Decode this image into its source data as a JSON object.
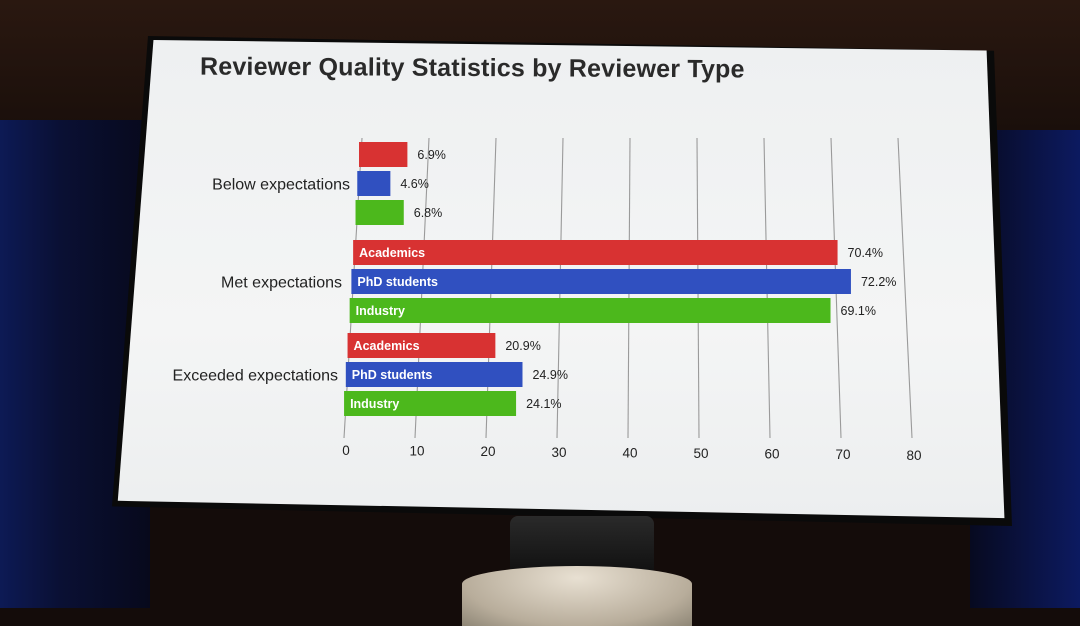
{
  "slide": {
    "title": "Reviewer Quality Statistics by Reviewer Type"
  },
  "chart_data": {
    "type": "bar",
    "orientation": "horizontal",
    "title": "Reviewer Quality Statistics by Reviewer Type",
    "xlabel": "",
    "ylabel": "",
    "xlim": [
      0,
      80
    ],
    "x_ticks": [
      0,
      10,
      20,
      30,
      40,
      50,
      60,
      70,
      80
    ],
    "grid": true,
    "legend": "inside-bars",
    "categories": [
      "Below expectations",
      "Met expectations",
      "Exceeded expectations"
    ],
    "series": [
      {
        "name": "Academics",
        "color": "#d83232",
        "values": [
          6.9,
          70.4,
          20.9
        ],
        "value_labels": [
          "6.9%",
          "70.4%",
          "20.9%"
        ]
      },
      {
        "name": "PhD students",
        "color": "#3050c0",
        "values": [
          4.6,
          72.2,
          24.9
        ],
        "value_labels": [
          "4.6%",
          "72.2%",
          "24.9%"
        ]
      },
      {
        "name": "Industry",
        "color": "#4cb81c",
        "values": [
          6.8,
          69.1,
          24.1
        ],
        "value_labels": [
          "6.8%",
          "69.1%",
          "24.1%"
        ]
      }
    ],
    "series_label_shown_in_groups": [
      false,
      true,
      true
    ]
  }
}
